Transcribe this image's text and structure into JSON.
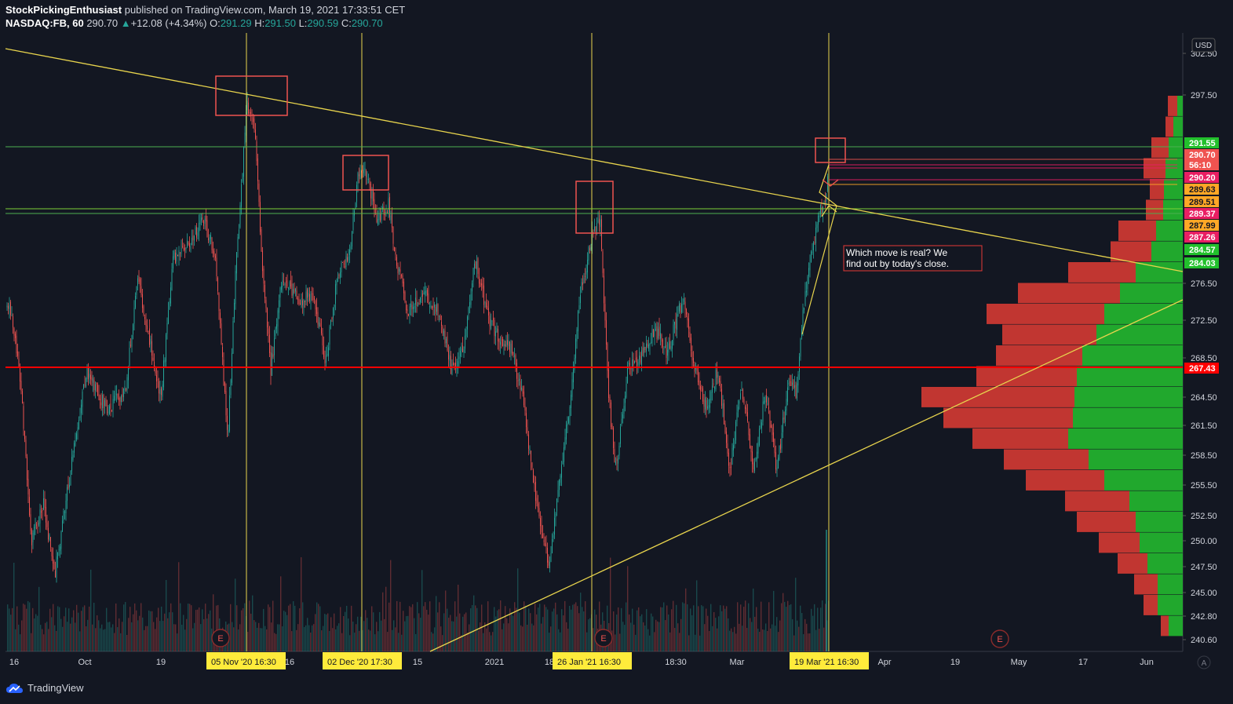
{
  "header": {
    "author": "StockPickingEnthusiast",
    "published_text": "published on TradingView.com, March 19, 2021 17:33:51 CET",
    "symbol": "NASDAQ:FB, 60",
    "last": "290.70",
    "change": "+12.08 (+4.34%)",
    "o_label": "O:",
    "o_val": "291.29",
    "h_label": "H:",
    "h_val": "291.50",
    "l_label": "L:",
    "l_val": "290.59",
    "c_label": "C:",
    "c_val": "290.70"
  },
  "footer": {
    "brand": "TradingView",
    "auto_label": "A"
  },
  "colors": {
    "bg": "#131722",
    "up": "#26a69a",
    "down": "#ef5350",
    "trend": "#e8d44d",
    "support": "#ff0000",
    "level": "#4caf50"
  },
  "annotation": "Which move is real? We find out by today's close.",
  "chart_data": {
    "type": "candlestick",
    "currency": "USD",
    "y_ticks": [
      "302.50",
      "297.50",
      "276.50",
      "272.50",
      "268.50",
      "264.50",
      "261.50",
      "258.50",
      "255.50",
      "252.50",
      "250.00",
      "247.50",
      "245.00",
      "242.80",
      "240.60"
    ],
    "x_ticks": [
      "16",
      "Oct",
      "19",
      "16",
      "15",
      "2021",
      "18",
      "18:30",
      "Mar",
      "Apr",
      "19",
      "May",
      "17",
      "Jun"
    ],
    "date_tags": [
      "05 Nov '20   16:30",
      "02 Dec '20   17:30",
      "26 Jan '21   16:30",
      "19 Mar '21   16:30"
    ],
    "price_labels": [
      {
        "text": "291.55",
        "color": "#22c02c"
      },
      {
        "text": "290.70",
        "color": "#ef5350"
      },
      {
        "text": "56:10",
        "color": "#ef5350"
      },
      {
        "text": "290.20",
        "color": "#e91e63"
      },
      {
        "text": "289.63",
        "color": "#ffa726"
      },
      {
        "text": "289.51",
        "color": "#ffa726"
      },
      {
        "text": "289.37",
        "color": "#e91e63"
      },
      {
        "text": "287.99",
        "color": "#ffa726"
      },
      {
        "text": "287.26",
        "color": "#e91e63"
      },
      {
        "text": "284.57",
        "color": "#22c02c"
      },
      {
        "text": "284.03",
        "color": "#22c02c"
      },
      {
        "text": "267.43",
        "color": "#ff0000"
      }
    ],
    "earnings_markers": [
      "E",
      "E",
      "E"
    ],
    "volume_profile": {
      "up": [
        7,
        12,
        18,
        22,
        24,
        25,
        34,
        40,
        60,
        80,
        100,
        110,
        128,
        135,
        138,
        140,
        146,
        120,
        100,
        68,
        60,
        55,
        45,
        32,
        32,
        18
      ],
      "down": [
        12,
        10,
        22,
        28,
        18,
        22,
        48,
        52,
        86,
        130,
        150,
        120,
        110,
        128,
        195,
        165,
        122,
        108,
        100,
        82,
        75,
        52,
        38,
        30,
        18,
        10
      ]
    },
    "series_note": ""
  }
}
